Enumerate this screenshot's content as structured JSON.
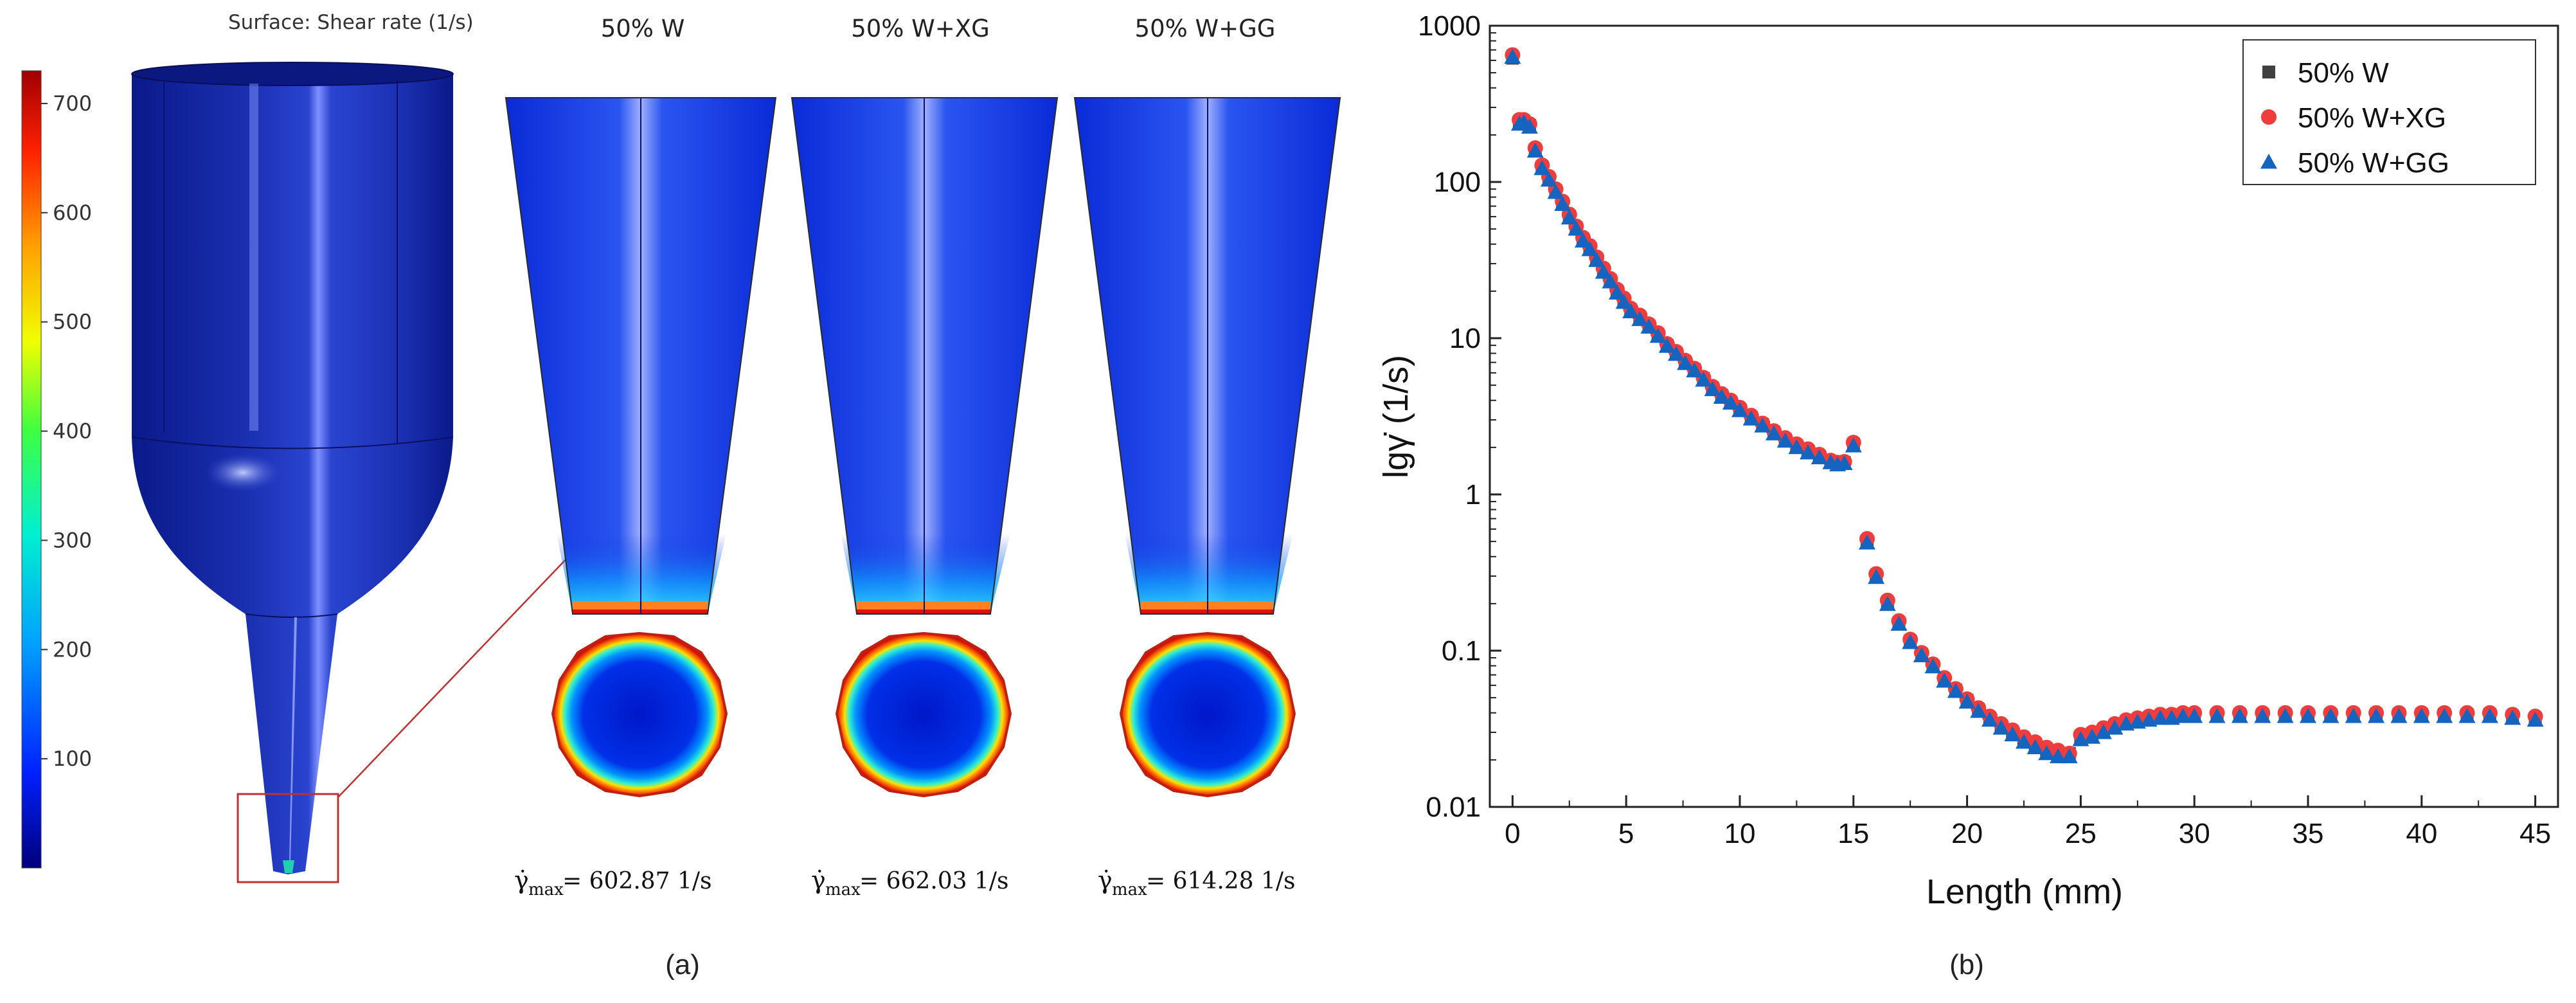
{
  "panel_a": {
    "label": "(a)",
    "surface_title": "Surface: Shear rate (1/s)",
    "colorbar": {
      "ticks": [
        "700",
        "600",
        "500",
        "400",
        "300",
        "200",
        "100"
      ],
      "range": [
        0,
        730
      ],
      "colors": [
        "#00007a",
        "#0020ff",
        "#00a0ff",
        "#00f0d0",
        "#40ff40",
        "#f0ff00",
        "#ffa000",
        "#ff2000",
        "#a00000"
      ]
    },
    "cases": [
      {
        "title": "50% W",
        "gamma_label": "γ̇",
        "gamma_sub": "max",
        "gamma_value": "= 602.87 1/s"
      },
      {
        "title": "50% W+XG",
        "gamma_label": "γ̇",
        "gamma_sub": "max",
        "gamma_value": "= 662.03 1/s"
      },
      {
        "title": "50% W+GG",
        "gamma_label": "γ̇",
        "gamma_sub": "max",
        "gamma_value": "= 614.28 1/s"
      }
    ]
  },
  "chart_data": {
    "type": "scatter",
    "panel_label": "(b)",
    "xlabel": "Length (mm)",
    "ylabel": "lgγ̇ (1/s)",
    "yscale": "log",
    "xlim": [
      -1,
      46
    ],
    "ylim": [
      0.01,
      1000
    ],
    "xticks": [
      0,
      5,
      10,
      15,
      20,
      25,
      30,
      35,
      40,
      45
    ],
    "yticks": [
      0.01,
      0.1,
      1,
      10,
      100,
      1000
    ],
    "ytick_labels": [
      "0.01",
      "0.1",
      "1",
      "10",
      "100",
      "1000"
    ],
    "legend_position": "top-right",
    "x": [
      0,
      0.3,
      0.5,
      0.75,
      1.0,
      1.3,
      1.6,
      1.9,
      2.2,
      2.5,
      2.8,
      3.1,
      3.4,
      3.7,
      4.0,
      4.3,
      4.6,
      4.9,
      5.2,
      5.6,
      6.0,
      6.4,
      6.8,
      7.2,
      7.6,
      8.0,
      8.4,
      8.8,
      9.2,
      9.6,
      10.0,
      10.5,
      11.0,
      11.5,
      12.0,
      12.5,
      13.0,
      13.5,
      14.0,
      14.3,
      14.6,
      15.0,
      15.6,
      16.0,
      16.5,
      17.0,
      17.5,
      18.0,
      18.5,
      19.0,
      19.5,
      20.0,
      20.5,
      21.0,
      21.5,
      22.0,
      22.5,
      23.0,
      23.5,
      24.0,
      24.5,
      25.0,
      25.5,
      26.0,
      26.5,
      27.0,
      27.5,
      28.0,
      28.5,
      29.0,
      29.5,
      30.0,
      31.0,
      32.0,
      33.0,
      34.0,
      35.0,
      36.0,
      37.0,
      38.0,
      39.0,
      40.0,
      41.0,
      42.0,
      43.0,
      44.0,
      45.0
    ],
    "series": [
      {
        "name": "50% W",
        "marker": "square",
        "color": "#404040",
        "values": [
          620,
          240,
          245,
          230,
          160,
          125,
          105,
          88,
          73,
          60,
          51,
          43,
          38,
          32,
          27,
          23.5,
          20,
          17.5,
          15,
          13.5,
          12,
          10.5,
          9,
          8,
          7,
          6.3,
          5.5,
          4.8,
          4.3,
          3.9,
          3.5,
          3.1,
          2.8,
          2.5,
          2.25,
          2.05,
          1.9,
          1.75,
          1.62,
          1.58,
          1.6,
          2.1,
          0.5,
          0.3,
          0.2,
          0.15,
          0.115,
          0.095,
          0.08,
          0.065,
          0.056,
          0.048,
          0.042,
          0.037,
          0.033,
          0.03,
          0.027,
          0.025,
          0.023,
          0.022,
          0.022,
          0.028,
          0.029,
          0.031,
          0.033,
          0.035,
          0.036,
          0.037,
          0.038,
          0.038,
          0.039,
          0.039,
          0.039,
          0.039,
          0.039,
          0.039,
          0.039,
          0.039,
          0.039,
          0.039,
          0.039,
          0.039,
          0.039,
          0.039,
          0.039,
          0.038,
          0.037
        ]
      },
      {
        "name": "50% W+XG",
        "marker": "circle",
        "color": "#f03c3c",
        "values": [
          650,
          250,
          250,
          235,
          165,
          128,
          108,
          90,
          75,
          62,
          52,
          44,
          39,
          33,
          28,
          24,
          20.5,
          18,
          15.5,
          14,
          12.3,
          10.8,
          9.2,
          8.2,
          7.2,
          6.4,
          5.6,
          4.9,
          4.4,
          4.0,
          3.6,
          3.2,
          2.85,
          2.55,
          2.3,
          2.1,
          1.95,
          1.8,
          1.65,
          1.6,
          1.62,
          2.15,
          0.52,
          0.31,
          0.21,
          0.155,
          0.118,
          0.097,
          0.082,
          0.067,
          0.057,
          0.049,
          0.043,
          0.038,
          0.034,
          0.031,
          0.028,
          0.026,
          0.024,
          0.023,
          0.022,
          0.029,
          0.03,
          0.032,
          0.034,
          0.036,
          0.037,
          0.038,
          0.039,
          0.039,
          0.04,
          0.04,
          0.04,
          0.04,
          0.04,
          0.04,
          0.04,
          0.04,
          0.04,
          0.04,
          0.04,
          0.04,
          0.04,
          0.04,
          0.04,
          0.039,
          0.038
        ]
      },
      {
        "name": "50% W+GG",
        "marker": "triangle",
        "color": "#1565c0",
        "values": [
          630,
          235,
          240,
          225,
          158,
          122,
          103,
          86,
          72,
          59,
          50,
          42,
          37,
          31.5,
          26.5,
          23,
          19.5,
          17,
          14.8,
          13.2,
          11.8,
          10.3,
          8.9,
          7.9,
          6.9,
          6.2,
          5.4,
          4.7,
          4.2,
          3.85,
          3.45,
          3.05,
          2.75,
          2.45,
          2.2,
          2.0,
          1.85,
          1.72,
          1.6,
          1.55,
          1.58,
          2.05,
          0.49,
          0.295,
          0.198,
          0.148,
          0.113,
          0.093,
          0.079,
          0.064,
          0.055,
          0.047,
          0.041,
          0.036,
          0.032,
          0.029,
          0.026,
          0.024,
          0.022,
          0.021,
          0.021,
          0.027,
          0.028,
          0.03,
          0.032,
          0.034,
          0.035,
          0.036,
          0.037,
          0.037,
          0.038,
          0.038,
          0.038,
          0.038,
          0.038,
          0.038,
          0.038,
          0.038,
          0.038,
          0.038,
          0.038,
          0.038,
          0.038,
          0.038,
          0.038,
          0.037,
          0.036
        ]
      }
    ]
  }
}
